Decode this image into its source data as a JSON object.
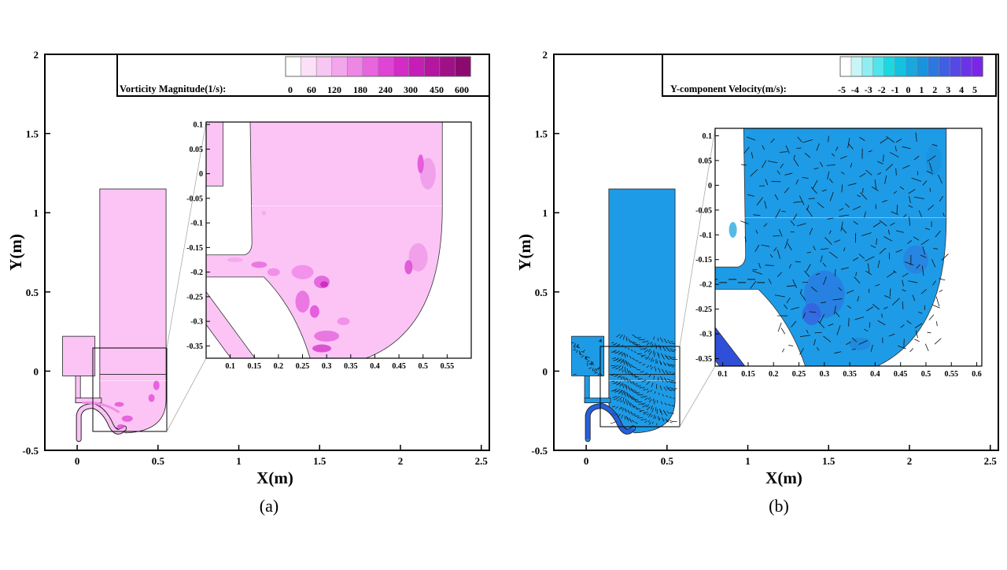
{
  "chart_data": [
    {
      "panel": "(a)",
      "type": "heatmap",
      "xlabel": "X(m)",
      "ylabel": "Y(m)",
      "xlim": [
        -0.2,
        2.55
      ],
      "ylim": [
        -0.5,
        2.0
      ],
      "xticks": [
        0,
        0.5,
        1,
        1.5,
        2,
        2.5
      ],
      "xtick_labels": [
        "0",
        "0.5",
        "1",
        "1.5",
        "2",
        "2.5"
      ],
      "yticks": [
        -0.5,
        0,
        0.5,
        1,
        1.5,
        2
      ],
      "ytick_labels": [
        "-0.5",
        "0",
        "0.5",
        "1",
        "1.5",
        "2"
      ],
      "legend": {
        "title": "Vorticity Magnitude(1/s):",
        "levels": [
          "0",
          "60",
          "120",
          "180",
          "240",
          "300",
          "450",
          "600"
        ],
        "colors": [
          "#ffffff",
          "#fbe0f8",
          "#f8c6f2",
          "#f3a6ec",
          "#ee86e6",
          "#e865de",
          "#e044d4",
          "#d42ac6",
          "#c51db6",
          "#b4169f",
          "#a01086",
          "#8c0a70"
        ]
      },
      "field_color": "#fbc4f5",
      "inset": {
        "xlim": [
          0.05,
          0.6
        ],
        "ylim": [
          -0.375,
          0.105
        ],
        "xticks": [
          0.1,
          0.15,
          0.2,
          0.25,
          0.3,
          0.35,
          0.4,
          0.45,
          0.5,
          0.55
        ],
        "xtick_labels": [
          "0.1",
          "0.15",
          "0.2",
          "0.25",
          "0.3",
          "0.35",
          "0.4",
          "0.45",
          "0.5",
          "0.55"
        ],
        "yticks": [
          0.1,
          0.05,
          0,
          -0.05,
          -0.1,
          -0.15,
          -0.2,
          -0.25,
          -0.3,
          -0.35
        ],
        "ytick_labels": [
          "0.1",
          "0.05",
          "0",
          "-0.05",
          "-0.1",
          "-0.15",
          "-0.2",
          "-0.25",
          "-0.3",
          "-0.35"
        ]
      }
    },
    {
      "panel": "(b)",
      "type": "heatmap",
      "xlabel": "X(m)",
      "ylabel": "Y(m)",
      "xlim": [
        -0.2,
        2.55
      ],
      "ylim": [
        -0.5,
        2.0
      ],
      "xticks": [
        0,
        0.5,
        1,
        1.5,
        2,
        2.5
      ],
      "xtick_labels": [
        "0",
        "0.5",
        "1",
        "1.5",
        "2",
        "2.5"
      ],
      "yticks": [
        -0.5,
        0,
        0.5,
        1,
        1.5,
        2
      ],
      "ytick_labels": [
        "-0.5",
        "0",
        "0.5",
        "1",
        "1.5",
        "2"
      ],
      "legend": {
        "title": "Y-component Velocity(m/s):",
        "levels": [
          "-5",
          "-4",
          "-3",
          "-2",
          "-1",
          "0",
          "1",
          "2",
          "3",
          "4",
          "5"
        ],
        "colors": [
          "#ffffff",
          "#c8f6f8",
          "#90eef2",
          "#52e4ea",
          "#1cd8e2",
          "#14c2e0",
          "#16a8de",
          "#1a92dc",
          "#2a78e0",
          "#3f5fe2",
          "#5548e4",
          "#6a34e6",
          "#7a26e8"
        ]
      },
      "field_color": "#1e9be6",
      "inset": {
        "xlim": [
          0.085,
          0.61
        ],
        "ylim": [
          -0.365,
          0.115
        ],
        "xticks": [
          0.1,
          0.15,
          0.2,
          0.25,
          0.3,
          0.35,
          0.4,
          0.45,
          0.5,
          0.55,
          0.6
        ],
        "xtick_labels": [
          "0.1",
          "0.15",
          "0.2",
          "0.25",
          "0.3",
          "0.35",
          "0.4",
          "0.45",
          "0.5",
          "0.55",
          "0.6"
        ],
        "yticks": [
          0.1,
          0.05,
          0,
          -0.05,
          -0.1,
          -0.15,
          -0.2,
          -0.25,
          -0.3,
          -0.35
        ],
        "ytick_labels": [
          "0.1",
          "0.05",
          "0",
          "-0.05",
          "-0.1",
          "-0.15",
          "-0.2",
          "-0.25",
          "-0.3",
          "-0.35"
        ]
      }
    }
  ]
}
